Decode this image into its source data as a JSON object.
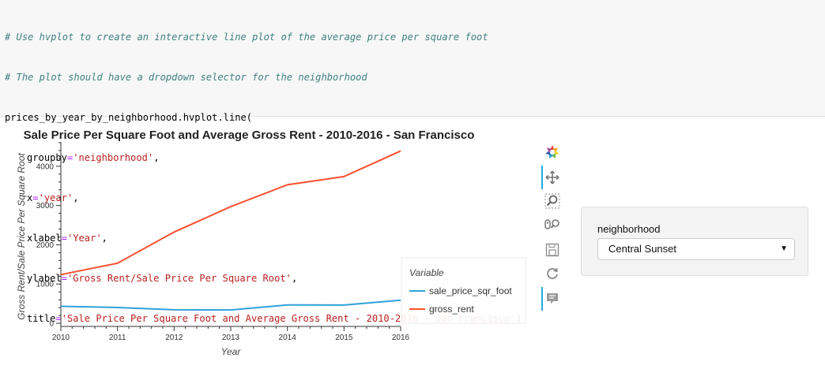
{
  "code": {
    "comment1": "# Use hvplot to create an interactive line plot of the average price per square foot",
    "comment2": "# The plot should have a dropdown selector for the neighborhood",
    "call": "prices_by_year_by_neighborhood.hvplot.line(",
    "args": [
      {
        "name": "groupby",
        "value": "'neighborhood'",
        "end": ","
      },
      {
        "name": "x",
        "value": "'year'",
        "end": ","
      },
      {
        "name": "xlabel",
        "value": "'Year'",
        "end": ","
      },
      {
        "name": "ylabel",
        "value": "'Gross Rent/Sale Price Per Square Root'",
        "end": ","
      },
      {
        "name": "title",
        "value": "'Sale Price Per Square Foot and Average Gross Rent - 2010-2016 - San Francisco'",
        "end": ")"
      }
    ]
  },
  "chart_data": {
    "type": "line",
    "title": "Sale Price Per Square Foot and Average Gross Rent - 2010-2016 - San Francisco",
    "xlabel": "Year",
    "ylabel": "Gross Rent/Sale Price Per Square Root",
    "x": [
      2010,
      2011,
      2012,
      2013,
      2014,
      2015,
      2016
    ],
    "xlim": [
      2010,
      2016
    ],
    "ylim": [
      -80,
      4620
    ],
    "yticks": [
      0,
      1000,
      2000,
      3000,
      4000
    ],
    "legend_title": "Variable",
    "legend_position": "bottom-right",
    "grid": false,
    "series": [
      {
        "name": "sale_price_sqr_foot",
        "color": "#30a2da",
        "values": [
          433,
          403,
          345,
          340,
          468,
          464,
          589
        ]
      },
      {
        "name": "gross_rent",
        "color": "#fc4f30",
        "values": [
          1239,
          1530,
          2324,
          2971,
          3528,
          3739,
          4390
        ]
      }
    ]
  },
  "toolbar": {
    "tools": [
      {
        "icon": "bokeh-logo-icon",
        "active": false
      },
      {
        "icon": "pan-icon",
        "active": true
      },
      {
        "icon": "box-zoom-icon",
        "active": false
      },
      {
        "icon": "wheel-zoom-icon",
        "active": false
      },
      {
        "icon": "save-icon",
        "active": false
      },
      {
        "icon": "reset-icon",
        "active": false
      },
      {
        "icon": "hover-icon",
        "active": true
      }
    ]
  },
  "widget": {
    "label": "neighborhood",
    "selected": "Central Sunset"
  }
}
